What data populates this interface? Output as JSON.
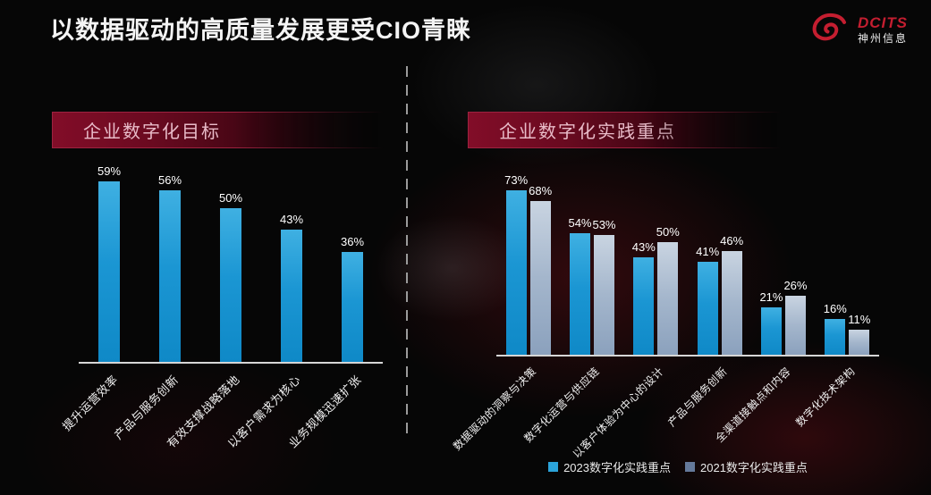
{
  "slide": {
    "title": "以数据驱动的高质量发展更受CIO青睐",
    "logo": {
      "brand": "DCITS",
      "company": "神州信息",
      "brand_color": "#c41e30"
    },
    "colors": {
      "background": "#060606",
      "banner_red": "#820d28",
      "banner_border": "#9d2240",
      "bar_2023": "#1f9cd8",
      "bar_2021": "#a4b6cc",
      "axis": "#d6d6d6",
      "value_label": "#ffffff"
    }
  },
  "chart_data": [
    {
      "type": "bar",
      "title": "企业数字化目标",
      "categories": [
        "提升运营效率",
        "产品与服务创新",
        "有效支撑战略落地",
        "以客户需求为核心",
        "业务规模迅速扩张"
      ],
      "values": [
        59,
        56,
        50,
        43,
        36
      ],
      "unit": "%",
      "ylim": [
        0,
        65
      ],
      "grid": false,
      "bar_color": "#1f9cd8"
    },
    {
      "type": "bar",
      "title": "企业数字化实践重点",
      "categories": [
        "数据驱动的洞察与决策",
        "数字化运营与供应链",
        "以客户体验为中心的设计",
        "产品与服务创新",
        "全渠道接触点和内容",
        "数字化技术架构"
      ],
      "series": [
        {
          "name": "2023数字化实践重点",
          "values": [
            73,
            54,
            43,
            41,
            21,
            16
          ],
          "color": "#1f9cd8"
        },
        {
          "name": "2021数字化实践重点",
          "values": [
            68,
            53,
            50,
            46,
            26,
            11
          ],
          "color": "#a4b6cc"
        }
      ],
      "unit": "%",
      "ylim": [
        0,
        80
      ],
      "grid": false,
      "legend_position": "bottom"
    }
  ]
}
